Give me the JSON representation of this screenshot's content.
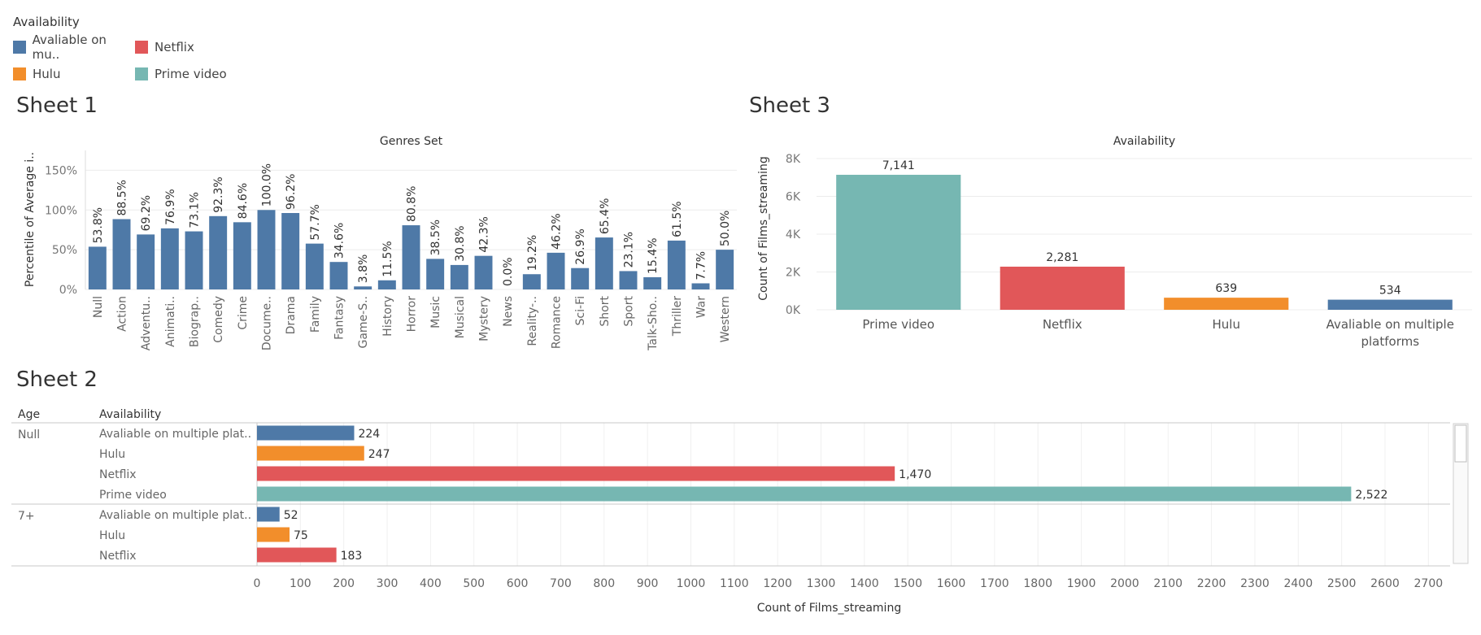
{
  "legend": {
    "title": "Availability",
    "items": [
      {
        "label": "Avaliable on mu..",
        "color": "#4e79a7"
      },
      {
        "label": "Netflix",
        "color": "#e15759"
      },
      {
        "label": "Hulu",
        "color": "#f28e2b"
      },
      {
        "label": "Prime video",
        "color": "#76b7b2"
      }
    ]
  },
  "sheets": {
    "sheet1": "Sheet 1",
    "sheet2": "Sheet 2",
    "sheet3": "Sheet 3"
  },
  "chart_data": [
    {
      "id": "genres",
      "type": "bar",
      "title": "Genres Set",
      "xlabel": "",
      "ylabel": "Percentile of Average i..",
      "ylim": [
        0,
        175
      ],
      "yticks": [
        0,
        50,
        100,
        150
      ],
      "ytick_labels": [
        "0%",
        "50%",
        "100%",
        "150%"
      ],
      "color": "#4e79a7",
      "categories": [
        "Null",
        "Action",
        "Adventu..",
        "Animati..",
        "Biograp..",
        "Comedy",
        "Crime",
        "Docume..",
        "Drama",
        "Family",
        "Fantasy",
        "Game-S..",
        "History",
        "Horror",
        "Music",
        "Musical",
        "Mystery",
        "News",
        "Reality-..",
        "Romance",
        "Sci-Fi",
        "Short",
        "Sport",
        "Talk-Sho..",
        "Thriller",
        "War",
        "Western"
      ],
      "values": [
        53.8,
        88.5,
        69.2,
        76.9,
        73.1,
        92.3,
        84.6,
        100.0,
        96.2,
        57.7,
        34.6,
        3.8,
        11.5,
        80.8,
        38.5,
        30.8,
        42.3,
        0.0,
        19.2,
        46.2,
        26.9,
        65.4,
        23.1,
        15.4,
        61.5,
        7.7,
        50.0
      ],
      "labels": [
        "53.8%",
        "88.5%",
        "69.2%",
        "76.9%",
        "73.1%",
        "92.3%",
        "84.6%",
        "100.0%",
        "96.2%",
        "57.7%",
        "34.6%",
        "3.8%",
        "11.5%",
        "80.8%",
        "38.5%",
        "30.8%",
        "42.3%",
        "0.0%",
        "19.2%",
        "46.2%",
        "26.9%",
        "65.4%",
        "23.1%",
        "15.4%",
        "61.5%",
        "7.7%",
        "50.0%"
      ]
    },
    {
      "id": "availability",
      "type": "bar",
      "title": "Availability",
      "xlabel": "",
      "ylabel": "Count of Films_streaming",
      "ylim": [
        0,
        8000
      ],
      "yticks": [
        0,
        2000,
        4000,
        6000,
        8000
      ],
      "ytick_labels": [
        "0K",
        "2K",
        "4K",
        "6K",
        "8K"
      ],
      "categories": [
        [
          "Prime video"
        ],
        [
          "Netflix"
        ],
        [
          "Hulu"
        ],
        [
          "Avaliable on multiple",
          "platforms"
        ]
      ],
      "values": [
        7141,
        2281,
        639,
        534
      ],
      "labels": [
        "7,141",
        "2,281",
        "639",
        "534"
      ],
      "colors": [
        "#76b7b2",
        "#e15759",
        "#f28e2b",
        "#4e79a7"
      ]
    },
    {
      "id": "age",
      "type": "bar",
      "orientation": "horizontal",
      "xlabel": "Count of Films_streaming",
      "xlim": [
        0,
        2750
      ],
      "xticks": [
        0,
        100,
        200,
        300,
        400,
        500,
        600,
        700,
        800,
        900,
        1000,
        1100,
        1200,
        1300,
        1400,
        1500,
        1600,
        1700,
        1800,
        1900,
        2000,
        2100,
        2200,
        2300,
        2400,
        2500,
        2600,
        2700
      ],
      "headers": {
        "age": "Age",
        "availability": "Availability"
      },
      "groups": [
        {
          "age": "Null",
          "rows": [
            {
              "label": "Avaliable on multiple plat..",
              "value": 224,
              "text": "224",
              "color": "#4e79a7"
            },
            {
              "label": "Hulu",
              "value": 247,
              "text": "247",
              "color": "#f28e2b"
            },
            {
              "label": "Netflix",
              "value": 1470,
              "text": "1,470",
              "color": "#e15759"
            },
            {
              "label": "Prime video",
              "value": 2522,
              "text": "2,522",
              "color": "#76b7b2"
            }
          ]
        },
        {
          "age": "7+",
          "rows": [
            {
              "label": "Avaliable on multiple plat..",
              "value": 52,
              "text": "52",
              "color": "#4e79a7"
            },
            {
              "label": "Hulu",
              "value": 75,
              "text": "75",
              "color": "#f28e2b"
            },
            {
              "label": "Netflix",
              "value": 183,
              "text": "183",
              "color": "#e15759"
            }
          ]
        }
      ]
    }
  ]
}
